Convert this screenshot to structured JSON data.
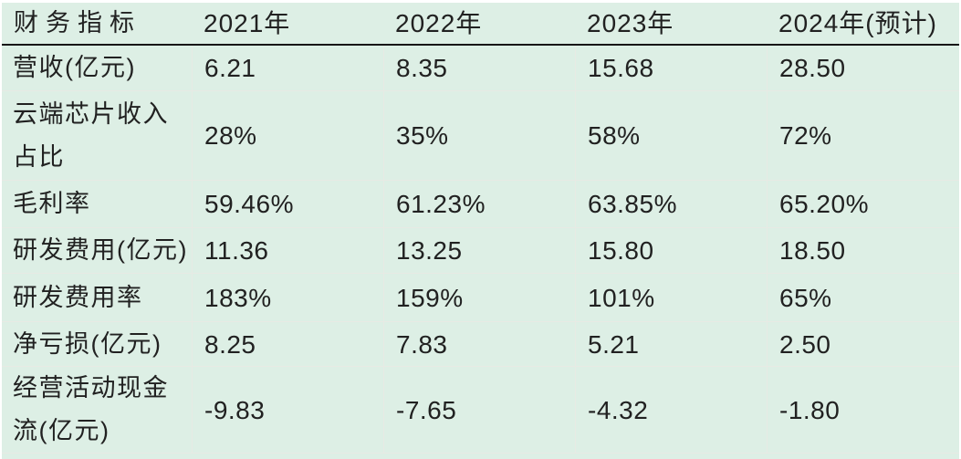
{
  "colors": {
    "background_mint": "#ddefe5",
    "grid_line": "#e7eae4",
    "header_rule": "#161616",
    "text": "#212121",
    "page_margin": "#ffffff"
  },
  "table": {
    "columns": [
      "财务指标",
      "2021年",
      "2022年",
      "2023年",
      "2024年(预计)"
    ],
    "rows": [
      {
        "label": "营收(亿元)",
        "values": [
          "6.21",
          "8.35",
          "15.68",
          "28.50"
        ]
      },
      {
        "label": "云端芯片收入\n占比",
        "values": [
          "28%",
          "35%",
          "58%",
          "72%"
        ]
      },
      {
        "label": "毛利率",
        "values": [
          "59.46%",
          "61.23%",
          "63.85%",
          "65.20%"
        ]
      },
      {
        "label": "研发费用(亿元)",
        "values": [
          "11.36",
          "13.25",
          "15.80",
          "18.50"
        ]
      },
      {
        "label": "研发费用率",
        "values": [
          "183%",
          "159%",
          "101%",
          "65%"
        ]
      },
      {
        "label": "净亏损(亿元)",
        "values": [
          "8.25",
          "7.83",
          "5.21",
          "2.50"
        ]
      },
      {
        "label": "经营活动现金\n流(亿元)",
        "values": [
          "-9.83",
          "-7.65",
          "-4.32",
          "-1.80"
        ]
      }
    ]
  },
  "chart_data": {
    "type": "table",
    "title": "",
    "columns": [
      "财务指标",
      "2021年",
      "2022年",
      "2023年",
      "2024年(预计)"
    ],
    "rows": [
      [
        "营收(亿元)",
        "6.21",
        "8.35",
        "15.68",
        "28.50"
      ],
      [
        "云端芯片收入占比",
        "28%",
        "35%",
        "58%",
        "72%"
      ],
      [
        "毛利率",
        "59.46%",
        "61.23%",
        "63.85%",
        "65.20%"
      ],
      [
        "研发费用(亿元)",
        "11.36",
        "13.25",
        "15.80",
        "18.50"
      ],
      [
        "研发费用率",
        "183%",
        "159%",
        "101%",
        "65%"
      ],
      [
        "净亏损(亿元)",
        "8.25",
        "7.83",
        "5.21",
        "2.50"
      ],
      [
        "经营活动现金流(亿元)",
        "-9.83",
        "-7.65",
        "-4.32",
        "-1.80"
      ]
    ]
  }
}
